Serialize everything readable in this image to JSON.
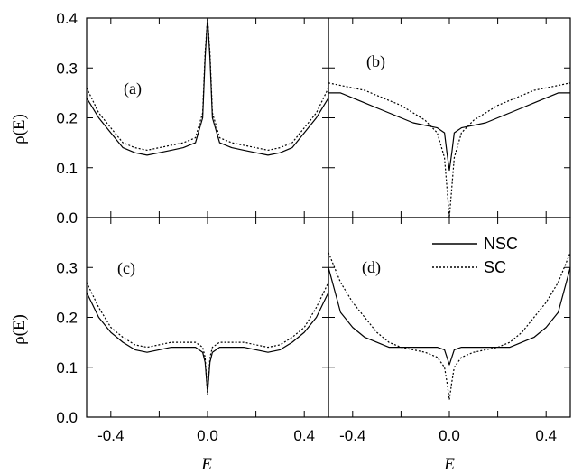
{
  "chart_data": {
    "type": "line",
    "xlabel": "E",
    "ylabel": "ρ(E)",
    "xlim": [
      -0.5,
      0.5
    ],
    "ylim": [
      0.0,
      0.4
    ],
    "x_ticks": [
      "-0.4",
      "0.0",
      "0.4"
    ],
    "y_ticks_top": [
      "0.0",
      "0.1",
      "0.2",
      "0.3",
      "0.4"
    ],
    "y_ticks_bottom": [
      "0.0",
      "0.1",
      "0.2",
      "0.3"
    ],
    "legend": {
      "position": "top-right of panel (d)",
      "entries": [
        "NSC",
        "SC"
      ]
    },
    "series_names": [
      "NSC",
      "SC"
    ],
    "line_styles": {
      "NSC": "solid",
      "SC": "dotted"
    },
    "x": [
      -0.5,
      -0.45,
      -0.4,
      -0.35,
      -0.3,
      -0.25,
      -0.2,
      -0.15,
      -0.1,
      -0.05,
      -0.02,
      -0.01,
      0.0,
      0.01,
      0.02,
      0.05,
      0.1,
      0.15,
      0.2,
      0.25,
      0.3,
      0.35,
      0.4,
      0.45,
      0.5
    ],
    "panels": [
      {
        "label": "(a)",
        "series": [
          {
            "name": "NSC",
            "values": [
              0.24,
              0.2,
              0.17,
              0.14,
              0.13,
              0.125,
              0.13,
              0.135,
              0.14,
              0.15,
              0.2,
              0.32,
              0.4,
              0.32,
              0.2,
              0.15,
              0.14,
              0.135,
              0.13,
              0.125,
              0.13,
              0.14,
              0.17,
              0.2,
              0.24
            ]
          },
          {
            "name": "SC",
            "values": [
              0.26,
              0.21,
              0.18,
              0.15,
              0.14,
              0.135,
              0.14,
              0.145,
              0.15,
              0.16,
              0.21,
              0.33,
              0.4,
              0.33,
              0.21,
              0.16,
              0.15,
              0.145,
              0.14,
              0.135,
              0.14,
              0.15,
              0.18,
              0.21,
              0.26
            ]
          }
        ]
      },
      {
        "label": "(b)",
        "series": [
          {
            "name": "NSC",
            "values": [
              0.25,
              0.25,
              0.24,
              0.23,
              0.22,
              0.21,
              0.2,
              0.19,
              0.185,
              0.18,
              0.17,
              0.13,
              0.095,
              0.13,
              0.17,
              0.18,
              0.185,
              0.19,
              0.2,
              0.21,
              0.22,
              0.23,
              0.24,
              0.25,
              0.25
            ]
          },
          {
            "name": "SC",
            "values": [
              0.27,
              0.265,
              0.26,
              0.255,
              0.245,
              0.235,
              0.225,
              0.21,
              0.195,
              0.17,
              0.12,
              0.06,
              0.0,
              0.06,
              0.12,
              0.17,
              0.195,
              0.21,
              0.225,
              0.235,
              0.245,
              0.255,
              0.26,
              0.265,
              0.27
            ]
          }
        ]
      },
      {
        "label": "(c)",
        "series": [
          {
            "name": "NSC",
            "values": [
              0.25,
              0.2,
              0.17,
              0.15,
              0.135,
              0.13,
              0.135,
              0.14,
              0.14,
              0.14,
              0.13,
              0.11,
              0.05,
              0.11,
              0.13,
              0.14,
              0.14,
              0.14,
              0.135,
              0.13,
              0.135,
              0.15,
              0.17,
              0.2,
              0.25
            ]
          },
          {
            "name": "SC",
            "values": [
              0.27,
              0.22,
              0.18,
              0.16,
              0.145,
              0.14,
              0.145,
              0.15,
              0.15,
              0.15,
              0.14,
              0.12,
              0.045,
              0.12,
              0.14,
              0.15,
              0.15,
              0.15,
              0.145,
              0.14,
              0.145,
              0.16,
              0.18,
              0.22,
              0.27
            ]
          }
        ]
      },
      {
        "label": "(d)",
        "series": [
          {
            "name": "NSC",
            "values": [
              0.3,
              0.21,
              0.18,
              0.16,
              0.15,
              0.14,
              0.14,
              0.14,
              0.14,
              0.14,
              0.135,
              0.12,
              0.105,
              0.12,
              0.135,
              0.14,
              0.14,
              0.14,
              0.14,
              0.14,
              0.15,
              0.16,
              0.18,
              0.21,
              0.3
            ]
          },
          {
            "name": "SC",
            "values": [
              0.33,
              0.27,
              0.23,
              0.2,
              0.17,
              0.15,
              0.14,
              0.135,
              0.13,
              0.12,
              0.1,
              0.07,
              0.035,
              0.07,
              0.1,
              0.12,
              0.13,
              0.135,
              0.14,
              0.15,
              0.17,
              0.2,
              0.23,
              0.27,
              0.33
            ]
          }
        ]
      }
    ]
  }
}
